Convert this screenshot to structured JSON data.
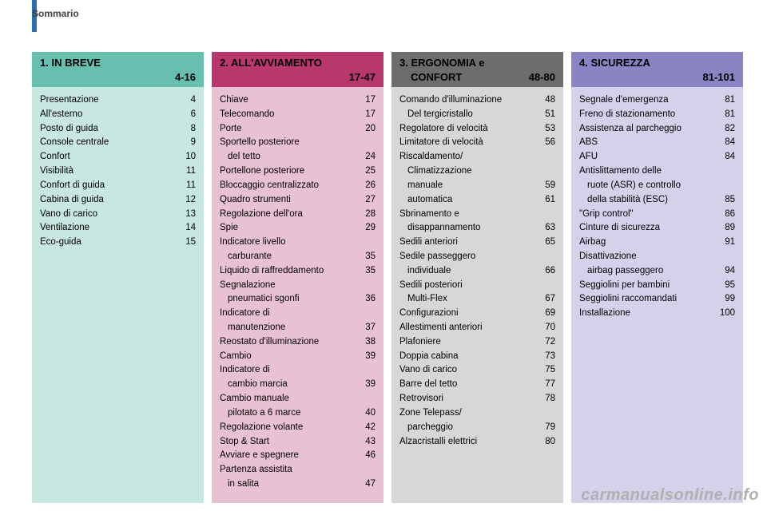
{
  "tab_label": "Sommario",
  "watermark": "carmanualsonline.info",
  "columns": [
    {
      "header_bg": "#67bfb0",
      "body_bg": "#c9e7e1",
      "title": "1. IN BREVE",
      "range": "4-16",
      "items": [
        {
          "label": "Presentazione",
          "page": "4"
        },
        {
          "label": "All'esterno",
          "page": "6"
        },
        {
          "label": "Posto di guida",
          "page": "8"
        },
        {
          "label": "Console centrale",
          "page": "9"
        },
        {
          "label": "Confort",
          "page": "10"
        },
        {
          "label": "Visibilità",
          "page": "11"
        },
        {
          "label": "Confort di guida",
          "page": "11"
        },
        {
          "label": "Cabina di guida",
          "page": "12"
        },
        {
          "label": "Vano di carico",
          "page": "13"
        },
        {
          "label": "Ventilazione",
          "page": "14"
        },
        {
          "label": "Eco-guida",
          "page": "15"
        }
      ]
    },
    {
      "header_bg": "#b8376d",
      "body_bg": "#e8c1d2",
      "title": "2. ALL'AVVIAMENTO",
      "range": "17-47",
      "items": [
        {
          "label": "Chiave",
          "page": "17"
        },
        {
          "label": "Telecomando",
          "page": "17"
        },
        {
          "label": "Porte",
          "page": "20"
        },
        {
          "label": "Sportello posteriore",
          "page": ""
        },
        {
          "label": "del tetto",
          "page": "24",
          "indent": true
        },
        {
          "label": "Portellone posteriore",
          "page": "25"
        },
        {
          "label": "Bloccaggio centralizzato",
          "page": "26"
        },
        {
          "label": "Quadro strumenti",
          "page": "27"
        },
        {
          "label": "Regolazione dell'ora",
          "page": "28"
        },
        {
          "label": "Spie",
          "page": "29"
        },
        {
          "label": "Indicatore livello",
          "page": ""
        },
        {
          "label": "carburante",
          "page": "35",
          "indent": true
        },
        {
          "label": "Liquido di raffreddamento",
          "page": "35"
        },
        {
          "label": "Segnalazione",
          "page": ""
        },
        {
          "label": "pneumatici sgonfi",
          "page": "36",
          "indent": true
        },
        {
          "label": "Indicatore di",
          "page": ""
        },
        {
          "label": "manutenzione",
          "page": "37",
          "indent": true
        },
        {
          "label": "Reostato d'illuminazione",
          "page": "38"
        },
        {
          "label": "Cambio",
          "page": "39"
        },
        {
          "label": "Indicatore di",
          "page": ""
        },
        {
          "label": "cambio marcia",
          "page": "39",
          "indent": true
        },
        {
          "label": "Cambio manuale",
          "page": ""
        },
        {
          "label": "pilotato a 6 marce",
          "page": "40",
          "indent": true
        },
        {
          "label": "Regolazione volante",
          "page": "42"
        },
        {
          "label": "Stop & Start",
          "page": "43"
        },
        {
          "label": "Avviare e spegnere",
          "page": "46"
        },
        {
          "label": "Partenza assistita",
          "page": ""
        },
        {
          "label": "in salita",
          "page": "47",
          "indent": true
        }
      ]
    },
    {
      "header_bg": "#6d6d6d",
      "body_bg": "#d7d7d7",
      "title": "3. ERGONOMIA e CONFORT",
      "range": "48-80",
      "title_inline_range": true,
      "items": [
        {
          "label": "Comando d'illuminazione",
          "page": "48"
        },
        {
          "label": "Del tergicristallo",
          "page": "51",
          "indent": true
        },
        {
          "label": "Regolatore di velocità",
          "page": "53"
        },
        {
          "label": "Limitatore di velocità",
          "page": "56"
        },
        {
          "label": "Riscaldamento/",
          "page": ""
        },
        {
          "label": "Climatizzazione",
          "page": "",
          "indent": true
        },
        {
          "label": "manuale",
          "page": "59",
          "indent": true
        },
        {
          "label": "automatica",
          "page": "61",
          "indent": true
        },
        {
          "label": "Sbrinamento e",
          "page": ""
        },
        {
          "label": "disappannamento",
          "page": "63",
          "indent": true
        },
        {
          "label": "Sedili anteriori",
          "page": "65"
        },
        {
          "label": "Sedile passeggero",
          "page": ""
        },
        {
          "label": "individuale",
          "page": "66",
          "indent": true
        },
        {
          "label": "Sedili posteriori",
          "page": ""
        },
        {
          "label": "Multi-Flex",
          "page": "67",
          "indent": true
        },
        {
          "label": "Configurazioni",
          "page": "69"
        },
        {
          "label": "Allestimenti anteriori",
          "page": "70"
        },
        {
          "label": "Plafoniere",
          "page": "72"
        },
        {
          "label": "Doppia cabina",
          "page": "73"
        },
        {
          "label": "Vano di carico",
          "page": "75"
        },
        {
          "label": "Barre del tetto",
          "page": "77"
        },
        {
          "label": "Retrovisori",
          "page": "78"
        },
        {
          "label": "Zone Telepass/",
          "page": ""
        },
        {
          "label": "parcheggio",
          "page": "79",
          "indent": true
        },
        {
          "label": "Alzacristalli elettrici",
          "page": "80"
        }
      ]
    },
    {
      "header_bg": "#8a84c4",
      "body_bg": "#d4d1ea",
      "title": "4. SICUREZZA",
      "range": "81-101",
      "items": [
        {
          "label": "Segnale d'emergenza",
          "page": "81"
        },
        {
          "label": "Freno di stazionamento",
          "page": "81"
        },
        {
          "label": "Assistenza al parcheggio",
          "page": "82"
        },
        {
          "label": "ABS",
          "page": "84"
        },
        {
          "label": "AFU",
          "page": "84"
        },
        {
          "label": "Antislittamento delle",
          "page": ""
        },
        {
          "label": "ruote (ASR) e controllo",
          "page": "",
          "indent": true
        },
        {
          "label": "della stabilità (ESC)",
          "page": "85",
          "indent": true
        },
        {
          "label": "\"Grip control\"",
          "page": "86"
        },
        {
          "label": "Cinture di sicurezza",
          "page": "89"
        },
        {
          "label": "Airbag",
          "page": "91"
        },
        {
          "label": "Disattivazione",
          "page": ""
        },
        {
          "label": "airbag passeggero",
          "page": "94",
          "indent": true
        },
        {
          "label": "Seggiolini per bambini",
          "page": "95"
        },
        {
          "label": "Seggiolini raccomandati",
          "page": "99"
        },
        {
          "label": "Installazione",
          "page": "100"
        }
      ]
    }
  ]
}
